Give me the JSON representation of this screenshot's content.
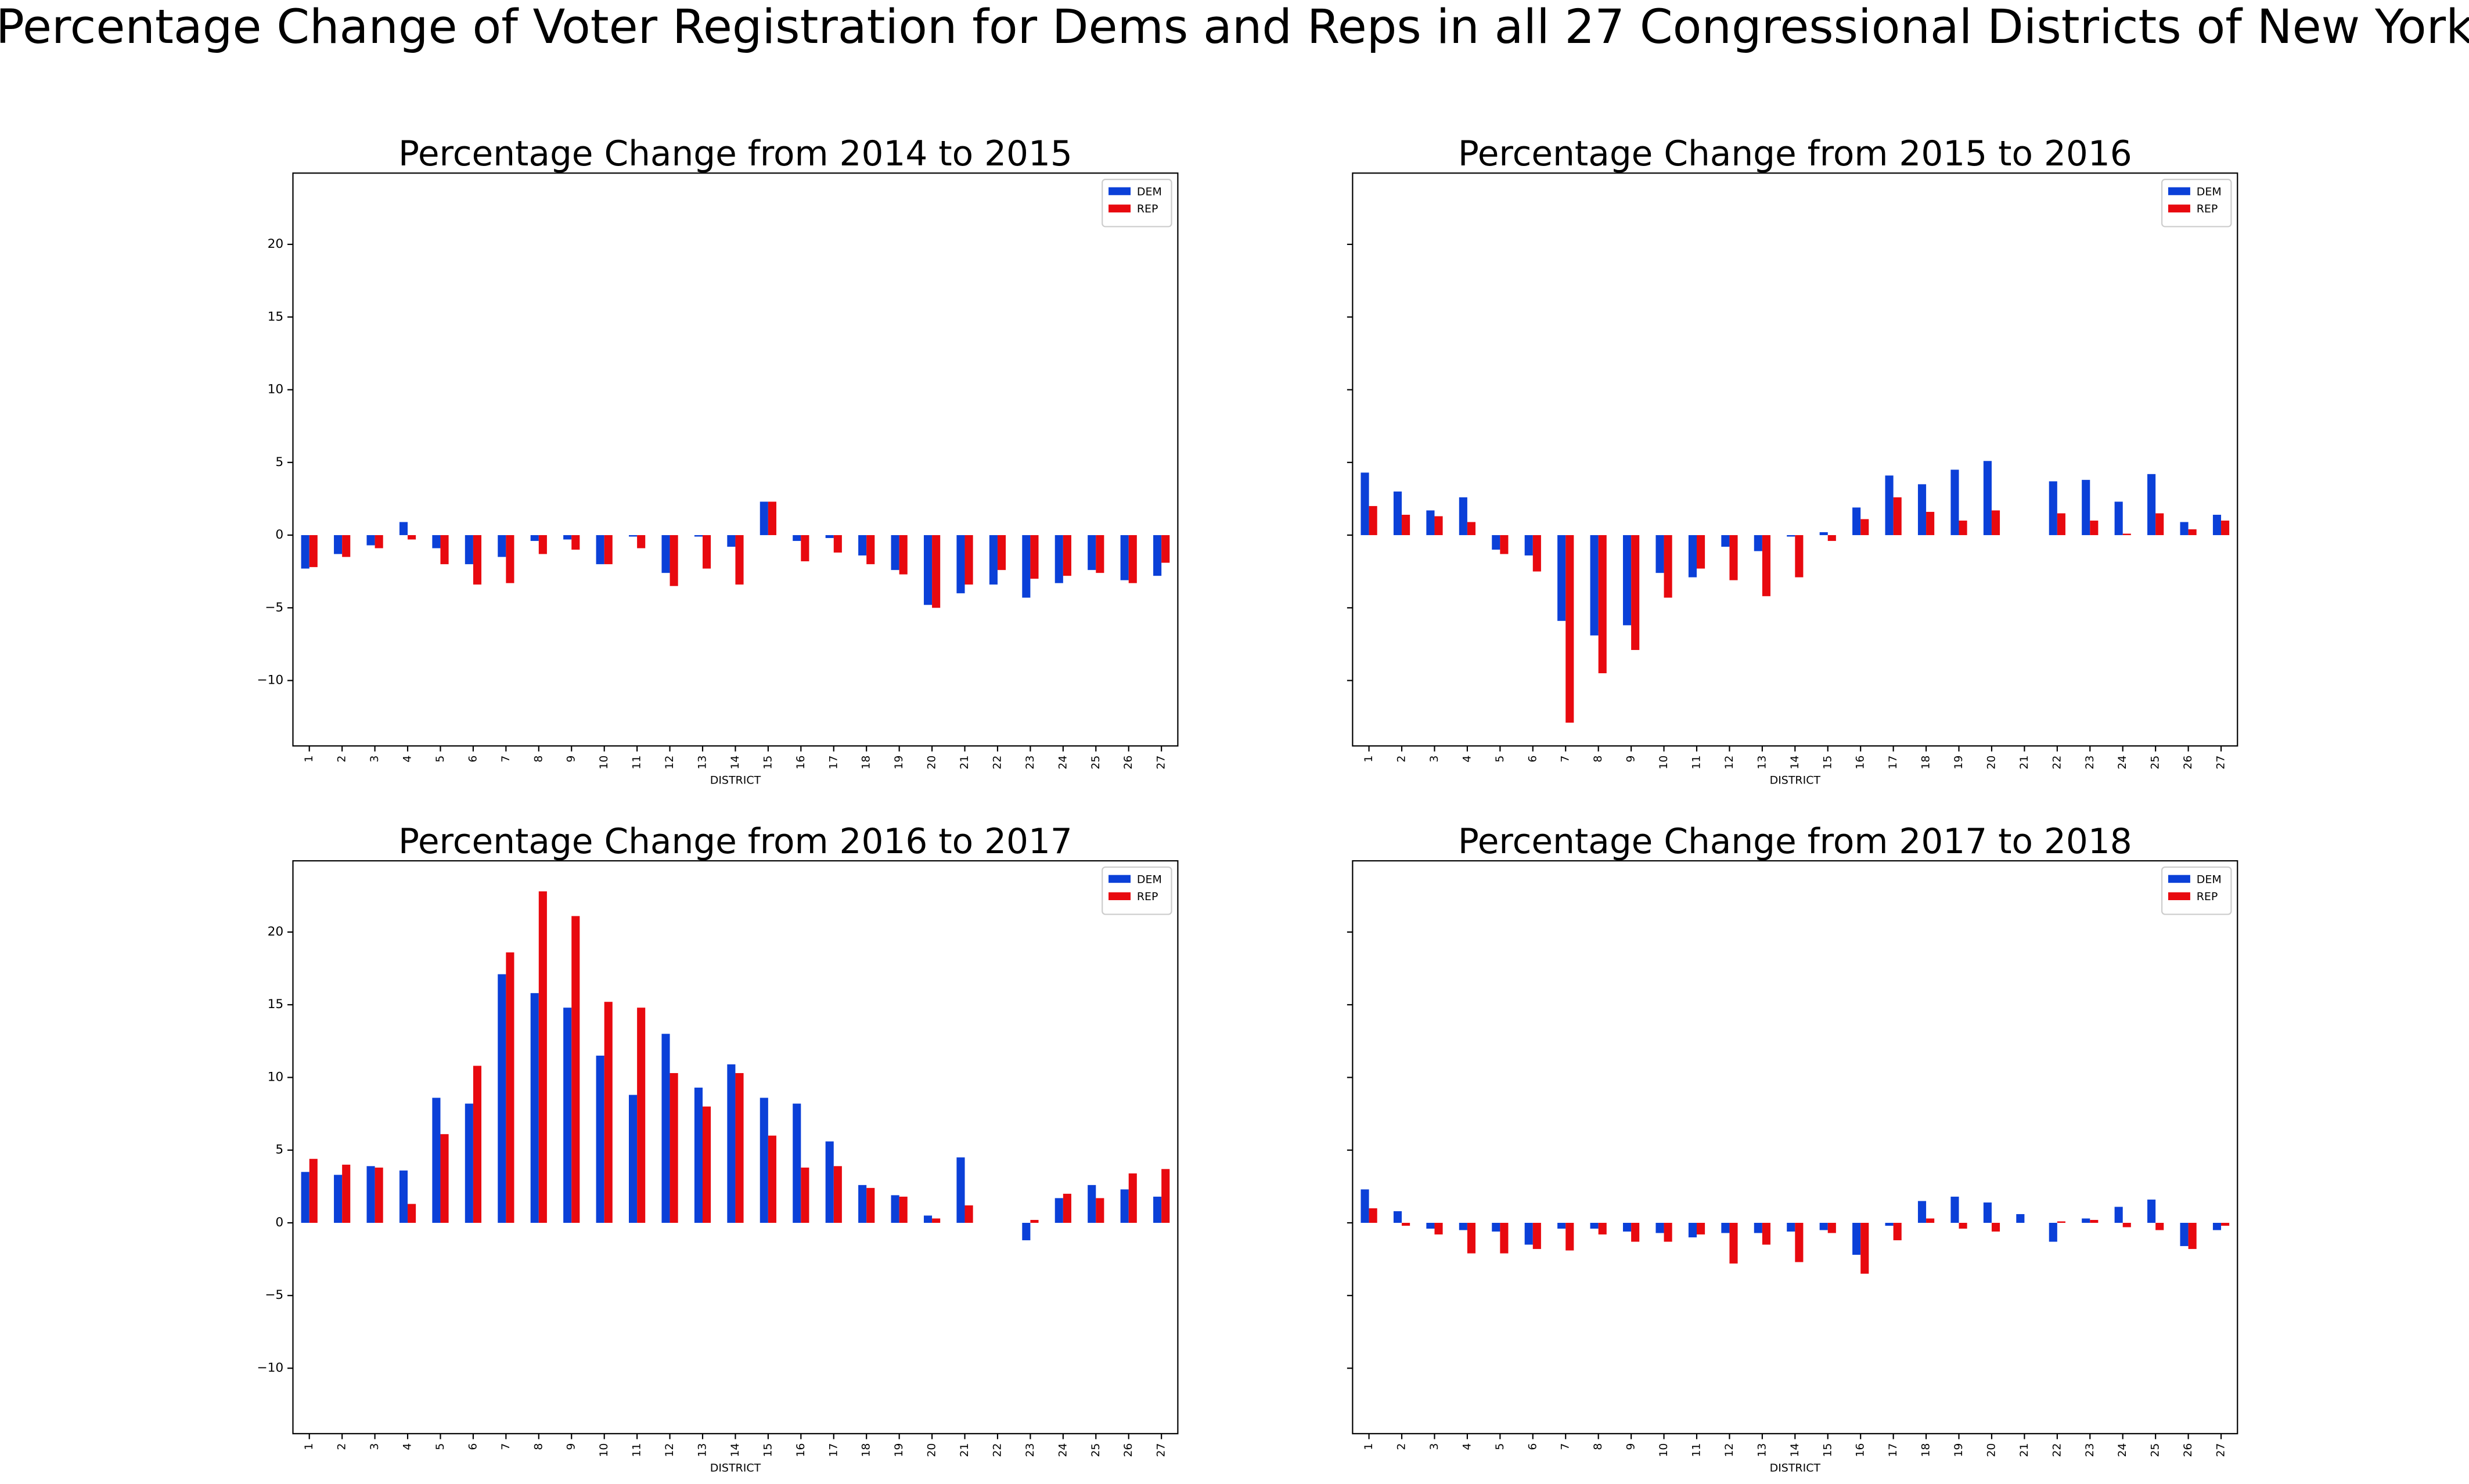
{
  "title": "Percentage Change of Voter Registration for Dems and Reps in all 27 Congressional Districts of New York",
  "chart_data": [
    {
      "type": "bar",
      "title": "Percentage Change from 2014 to 2015",
      "xlabel": "DISTRICT",
      "categories": [
        "1",
        "2",
        "3",
        "4",
        "5",
        "6",
        "7",
        "8",
        "9",
        "10",
        "11",
        "12",
        "13",
        "14",
        "15",
        "16",
        "17",
        "18",
        "19",
        "20",
        "21",
        "22",
        "23",
        "24",
        "25",
        "26",
        "27"
      ],
      "series": [
        {
          "name": "DEM",
          "color": "#0b40d8",
          "values": [
            -2.3,
            -1.3,
            -0.7,
            0.9,
            -0.9,
            -2.0,
            -1.5,
            -0.4,
            -0.3,
            -2.0,
            -0.1,
            -2.6,
            -0.1,
            -0.8,
            2.3,
            -0.4,
            -0.2,
            -1.4,
            -2.4,
            -4.8,
            -4.0,
            -3.4,
            -4.3,
            -3.3,
            -2.4,
            -3.1,
            -2.8
          ]
        },
        {
          "name": "REP",
          "color": "#e8090f",
          "values": [
            -2.2,
            -1.5,
            -0.9,
            -0.3,
            -2.0,
            -3.4,
            -3.3,
            -1.3,
            -1.0,
            -2.0,
            -0.9,
            -3.5,
            -2.3,
            -3.4,
            2.3,
            -1.8,
            -1.2,
            -2.0,
            -2.7,
            -5.0,
            -3.4,
            -2.4,
            -3.0,
            -2.8,
            -2.6,
            -3.3,
            -1.9
          ]
        }
      ],
      "ylim": [
        -14.5,
        24.9
      ],
      "yticks": [
        {
          "value": -10,
          "label": "−10"
        },
        {
          "value": -5,
          "label": "−5"
        },
        0,
        5,
        10,
        15,
        20
      ],
      "legend": "upper right"
    },
    {
      "type": "bar",
      "title": "Percentage Change from 2015 to 2016",
      "xlabel": "DISTRICT",
      "categories": [
        "1",
        "2",
        "3",
        "4",
        "5",
        "6",
        "7",
        "8",
        "9",
        "10",
        "11",
        "12",
        "13",
        "14",
        "15",
        "16",
        "17",
        "18",
        "19",
        "20",
        "21",
        "22",
        "23",
        "24",
        "25",
        "26",
        "27"
      ],
      "series": [
        {
          "name": "DEM",
          "color": "#0b40d8",
          "values": [
            4.3,
            3.0,
            1.7,
            2.6,
            -1.0,
            -1.4,
            -5.9,
            -6.9,
            -6.2,
            -2.6,
            -2.9,
            -0.8,
            -1.1,
            -0.1,
            0.2,
            1.9,
            4.1,
            3.5,
            4.5,
            5.1,
            null,
            3.7,
            3.8,
            2.3,
            4.2,
            0.9,
            1.4
          ]
        },
        {
          "name": "REP",
          "color": "#e8090f",
          "values": [
            2.0,
            1.4,
            1.3,
            0.9,
            -1.3,
            -2.5,
            -12.9,
            -9.5,
            -7.9,
            -4.3,
            -2.3,
            -3.1,
            -4.2,
            -2.9,
            -0.4,
            1.1,
            2.6,
            1.6,
            1.0,
            1.7,
            null,
            1.5,
            1.0,
            0.1,
            1.5,
            0.4,
            1.0
          ]
        }
      ],
      "ylim": [
        -14.5,
        24.9
      ],
      "yticks": [
        -10,
        -5,
        0,
        5,
        10,
        15,
        20
      ],
      "legend": "upper right"
    },
    {
      "type": "bar",
      "title": "Percentage Change from 2016 to 2017",
      "xlabel": "DISTRICT",
      "categories": [
        "1",
        "2",
        "3",
        "4",
        "5",
        "6",
        "7",
        "8",
        "9",
        "10",
        "11",
        "12",
        "13",
        "14",
        "15",
        "16",
        "17",
        "18",
        "19",
        "20",
        "21",
        "22",
        "23",
        "24",
        "25",
        "26",
        "27"
      ],
      "series": [
        {
          "name": "DEM",
          "color": "#0b40d8",
          "values": [
            3.5,
            3.3,
            3.9,
            3.6,
            8.6,
            8.2,
            17.1,
            15.8,
            14.8,
            11.5,
            8.8,
            13.0,
            9.3,
            10.9,
            8.6,
            8.2,
            5.6,
            2.6,
            1.9,
            0.5,
            4.5,
            null,
            -1.2,
            1.7,
            2.6,
            2.3,
            1.8
          ]
        },
        {
          "name": "REP",
          "color": "#e8090f",
          "values": [
            4.4,
            4.0,
            3.8,
            1.3,
            6.1,
            10.8,
            18.6,
            22.8,
            21.1,
            15.2,
            14.8,
            10.3,
            8.0,
            10.3,
            6.0,
            3.8,
            3.9,
            2.4,
            1.8,
            0.3,
            1.2,
            null,
            0.2,
            2.0,
            1.7,
            3.4,
            3.7
          ]
        }
      ],
      "ylim": [
        -14.5,
        24.9
      ],
      "yticks": [
        {
          "value": -10,
          "label": "−10"
        },
        {
          "value": -5,
          "label": "−5"
        },
        0,
        5,
        10,
        15,
        20
      ],
      "legend": "upper right"
    },
    {
      "type": "bar",
      "title": "Percentage Change from 2017 to 2018",
      "xlabel": "DISTRICT",
      "categories": [
        "1",
        "2",
        "3",
        "4",
        "5",
        "6",
        "7",
        "8",
        "9",
        "10",
        "11",
        "12",
        "13",
        "14",
        "15",
        "16",
        "17",
        "18",
        "19",
        "20",
        "21",
        "22",
        "23",
        "24",
        "25",
        "26",
        "27"
      ],
      "series": [
        {
          "name": "DEM",
          "color": "#0b40d8",
          "values": [
            2.3,
            0.8,
            -0.4,
            -0.5,
            -0.6,
            -1.5,
            -0.4,
            -0.4,
            -0.6,
            -0.7,
            -1.0,
            -0.7,
            -0.7,
            -0.6,
            -0.5,
            -2.2,
            -0.2,
            1.5,
            1.8,
            1.4,
            0.6,
            -1.3,
            0.3,
            1.1,
            1.6,
            -1.6,
            -0.5
          ]
        },
        {
          "name": "REP",
          "color": "#e8090f",
          "values": [
            1.0,
            -0.2,
            -0.8,
            -2.1,
            -2.1,
            -1.8,
            -1.9,
            -0.8,
            -1.3,
            -1.3,
            -0.8,
            -2.8,
            -1.5,
            -2.7,
            -0.7,
            -3.5,
            -1.2,
            0.3,
            -0.4,
            -0.6,
            null,
            0.1,
            0.2,
            -0.3,
            -0.5,
            -1.8,
            -0.2
          ]
        }
      ],
      "ylim": [
        -14.5,
        24.9
      ],
      "yticks": [
        -10,
        -5,
        0,
        5,
        10,
        15,
        20
      ],
      "legend": "upper right"
    }
  ]
}
